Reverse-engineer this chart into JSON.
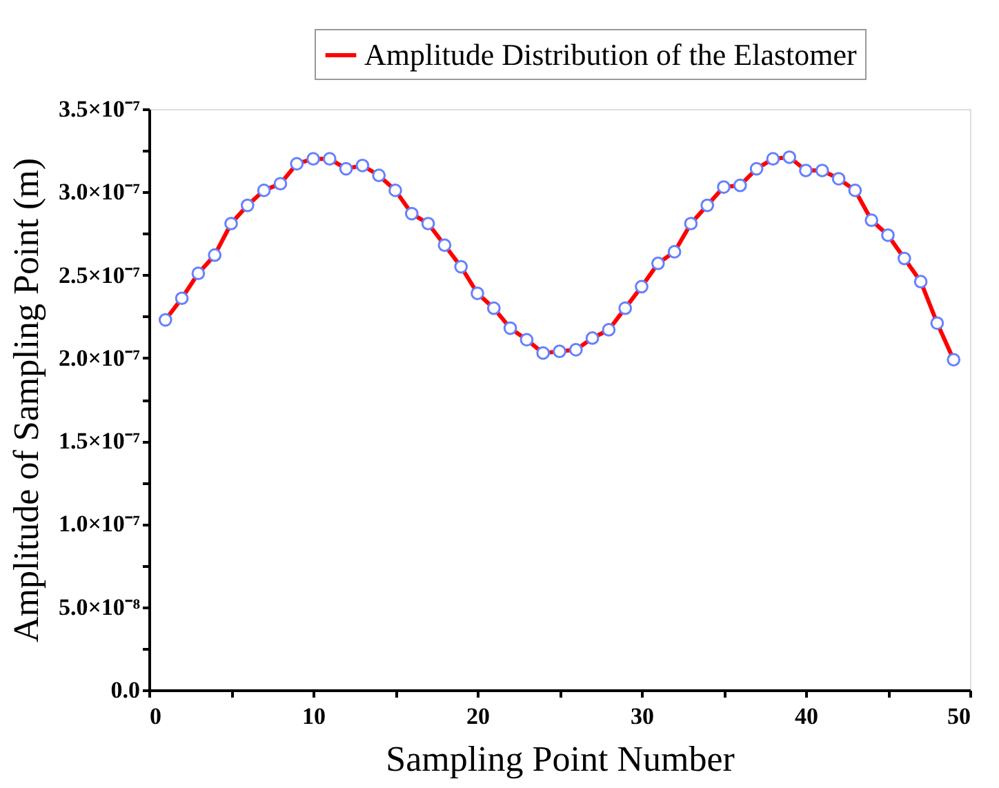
{
  "chart_data": {
    "type": "line",
    "xlabel": "Sampling Point Number",
    "ylabel": "Amplitude of Sampling Point (m)",
    "x": [
      1,
      2,
      3,
      4,
      5,
      6,
      7,
      8,
      9,
      10,
      11,
      12,
      13,
      14,
      15,
      16,
      17,
      18,
      19,
      20,
      21,
      22,
      23,
      24,
      25,
      26,
      27,
      28,
      29,
      30,
      31,
      32,
      33,
      34,
      35,
      36,
      37,
      38,
      39,
      40,
      41,
      42,
      43,
      44,
      45,
      46,
      47,
      48,
      49
    ],
    "series": [
      {
        "name": "Amplitude Distribution of the Elastomer",
        "color": "#ff0000",
        "values": [
          2.23e-07,
          2.36e-07,
          2.51e-07,
          2.62e-07,
          2.81e-07,
          2.92e-07,
          3.01e-07,
          3.05e-07,
          3.17e-07,
          3.2e-07,
          3.2e-07,
          3.14e-07,
          3.16e-07,
          3.1e-07,
          3.01e-07,
          2.87e-07,
          2.81e-07,
          2.68e-07,
          2.55e-07,
          2.39e-07,
          2.3e-07,
          2.18e-07,
          2.11e-07,
          2.03e-07,
          2.04e-07,
          2.05e-07,
          2.12e-07,
          2.17e-07,
          2.3e-07,
          2.43e-07,
          2.57e-07,
          2.64e-07,
          2.81e-07,
          2.92e-07,
          3.03e-07,
          3.04e-07,
          3.14e-07,
          3.2e-07,
          3.21e-07,
          3.13e-07,
          3.13e-07,
          3.08e-07,
          3.01e-07,
          2.83e-07,
          2.74e-07,
          2.6e-07,
          2.46e-07,
          2.21e-07,
          1.99e-07
        ]
      }
    ],
    "marker": "circle",
    "line_style": "solid",
    "grid": false,
    "legend": "top right",
    "xlim": [
      0,
      50
    ],
    "xticks": [
      0,
      {
        "value": 5,
        "label": null
      },
      10,
      {
        "value": 15,
        "label": null
      },
      20,
      {
        "value": 25,
        "label": null
      },
      30,
      {
        "value": 35,
        "label": null
      },
      40,
      {
        "value": 45,
        "label": null
      },
      50
    ],
    "ylim": [
      0,
      3.5e-07
    ],
    "yticks": [
      {
        "value": 0,
        "label": "0.0"
      },
      {
        "value": 2.5e-08,
        "label": null
      },
      {
        "value": 5e-08,
        "label": "5.0×10⁻⁸"
      },
      {
        "value": 7.5e-08,
        "label": null
      },
      {
        "value": 1e-07,
        "label": "1.0×10⁻⁷"
      },
      {
        "value": 1.25e-07,
        "label": null
      },
      {
        "value": 1.5e-07,
        "label": "1.5×10⁻⁷"
      },
      {
        "value": 1.75e-07,
        "label": null
      },
      {
        "value": 2e-07,
        "label": "2.0×10⁻⁷"
      },
      {
        "value": 2.25e-07,
        "label": null
      },
      {
        "value": 2.5e-07,
        "label": "2.5×10⁻⁷"
      },
      {
        "value": 2.75e-07,
        "label": null
      },
      {
        "value": 3e-07,
        "label": "3.0×10⁻⁷"
      },
      {
        "value": 3.25e-07,
        "label": null
      },
      {
        "value": 3.5e-07,
        "label": "3.5×10⁻⁷"
      }
    ]
  }
}
